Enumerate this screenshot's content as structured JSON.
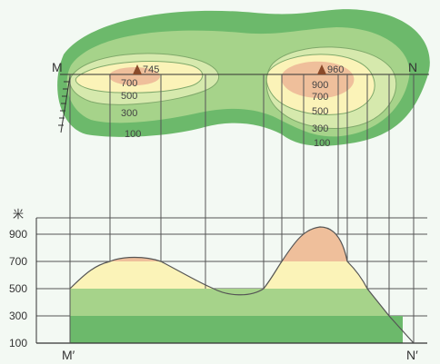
{
  "top_view": {
    "point_m": "M",
    "point_n": "N",
    "peak_left": {
      "elevation": "745",
      "contours": [
        "700",
        "500",
        "300",
        "100"
      ]
    },
    "peak_right": {
      "elevation": "960",
      "contours": [
        "900",
        "700",
        "500",
        "300",
        "100"
      ]
    }
  },
  "profile": {
    "unit": "米",
    "y_ticks": [
      "900",
      "700",
      "500",
      "300",
      "100"
    ],
    "point_m_prime": "M′",
    "point_n_prime": "N′"
  },
  "colors": {
    "band_100_300": "#6cb96b",
    "band_300_500": "#a6d38a",
    "band_500_700": "#d6e9ad",
    "band_700_900": "#fbf3b8",
    "band_above_900": "#efbf9b",
    "peak_marker": "#8a4a2a"
  }
}
